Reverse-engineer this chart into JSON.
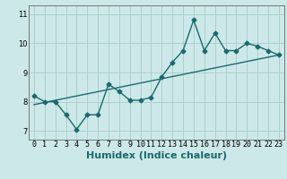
{
  "xlabel": "Humidex (Indice chaleur)",
  "bg_color": "#cce8e8",
  "grid_color": "#aacccc",
  "line_color": "#1a6b6b",
  "xlim": [
    -0.5,
    23.5
  ],
  "ylim": [
    6.7,
    11.3
  ],
  "xticks": [
    0,
    1,
    2,
    3,
    4,
    5,
    6,
    7,
    8,
    9,
    10,
    11,
    12,
    13,
    14,
    15,
    16,
    17,
    18,
    19,
    20,
    21,
    22,
    23
  ],
  "yticks": [
    7,
    8,
    9,
    10,
    11
  ],
  "series1_x": [
    0,
    1,
    2,
    3,
    4,
    5,
    6,
    7,
    8,
    9,
    10,
    11,
    12,
    13,
    14,
    15,
    16,
    17,
    18,
    19,
    20,
    21,
    22,
    23
  ],
  "series1_y": [
    8.2,
    8.0,
    8.0,
    7.55,
    7.05,
    7.55,
    7.55,
    8.6,
    8.35,
    8.05,
    8.05,
    8.15,
    8.85,
    9.35,
    9.75,
    10.8,
    9.75,
    10.35,
    9.75,
    9.75,
    10.0,
    9.9,
    9.75,
    9.6
  ],
  "trend_x": [
    0,
    23
  ],
  "trend_y": [
    7.9,
    9.6
  ],
  "marker": "D",
  "marker_size": 2.5,
  "line_width": 1.0,
  "xlabel_fontsize": 8,
  "tick_fontsize": 6
}
